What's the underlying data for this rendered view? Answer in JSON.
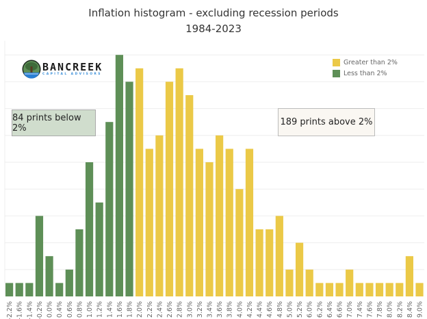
{
  "chart_data": {
    "type": "bar",
    "title": "Inflation histogram - excluding recession periods",
    "subtitle": "1984-2023",
    "xlabel": "",
    "ylabel": "",
    "categories": [
      "-2.2%",
      "-1.6%",
      "-1.4%",
      "-0.2%",
      "0.0%",
      "0.4%",
      "0.6%",
      "0.8%",
      "1.0%",
      "1.2%",
      "1.4%",
      "1.6%",
      "1.8%",
      "2.0%",
      "2.2%",
      "2.4%",
      "2.6%",
      "2.8%",
      "3.0%",
      "3.2%",
      "3.4%",
      "3.6%",
      "3.8%",
      "4.0%",
      "4.2%",
      "4.4%",
      "4.6%",
      "4.8%",
      "5.0%",
      "5.2%",
      "6.0%",
      "6.2%",
      "6.4%",
      "6.6%",
      "7.0%",
      "7.4%",
      "7.6%",
      "7.8%",
      "8.0%",
      "8.2%",
      "8.4%",
      "9.0%"
    ],
    "values": [
      1,
      1,
      1,
      6,
      3,
      1,
      2,
      5,
      10,
      7,
      13,
      18,
      16,
      17,
      11,
      12,
      16,
      17,
      15,
      11,
      10,
      12,
      11,
      8,
      11,
      5,
      5,
      6,
      2,
      4,
      2,
      1,
      1,
      1,
      2,
      1,
      1,
      1,
      1,
      1,
      3,
      1
    ],
    "series_group": [
      "Less than 2%",
      "Less than 2%",
      "Less than 2%",
      "Less than 2%",
      "Less than 2%",
      "Less than 2%",
      "Less than 2%",
      "Less than 2%",
      "Less than 2%",
      "Less than 2%",
      "Less than 2%",
      "Less than 2%",
      "Less than 2%",
      "Greater than 2%",
      "Greater than 2%",
      "Greater than 2%",
      "Greater than 2%",
      "Greater than 2%",
      "Greater than 2%",
      "Greater than 2%",
      "Greater than 2%",
      "Greater than 2%",
      "Greater than 2%",
      "Greater than 2%",
      "Greater than 2%",
      "Greater than 2%",
      "Greater than 2%",
      "Greater than 2%",
      "Greater than 2%",
      "Greater than 2%",
      "Greater than 2%",
      "Greater than 2%",
      "Greater than 2%",
      "Greater than 2%",
      "Greater than 2%",
      "Greater than 2%",
      "Greater than 2%",
      "Greater than 2%",
      "Greater than 2%",
      "Greater than 2%",
      "Greater than 2%",
      "Greater than 2%"
    ],
    "ylim": [
      0,
      19
    ],
    "y_grid_step": 2,
    "y_tick_labels_shown": false,
    "grid": true,
    "legend": {
      "placement": "top-right",
      "entries": [
        {
          "name": "Greater than 2%",
          "color": "#ebc947"
        },
        {
          "name": "Less than 2%",
          "color": "#5e8f57"
        }
      ]
    },
    "annotations": [
      {
        "text": "84 prints below 2%",
        "color": "#d0ddcd"
      },
      {
        "text": "189 prints above 2%",
        "color": "#faf7f2"
      }
    ]
  },
  "logo": {
    "name": "BANCREEK",
    "tagline": "CAPITAL ADVISORS"
  }
}
